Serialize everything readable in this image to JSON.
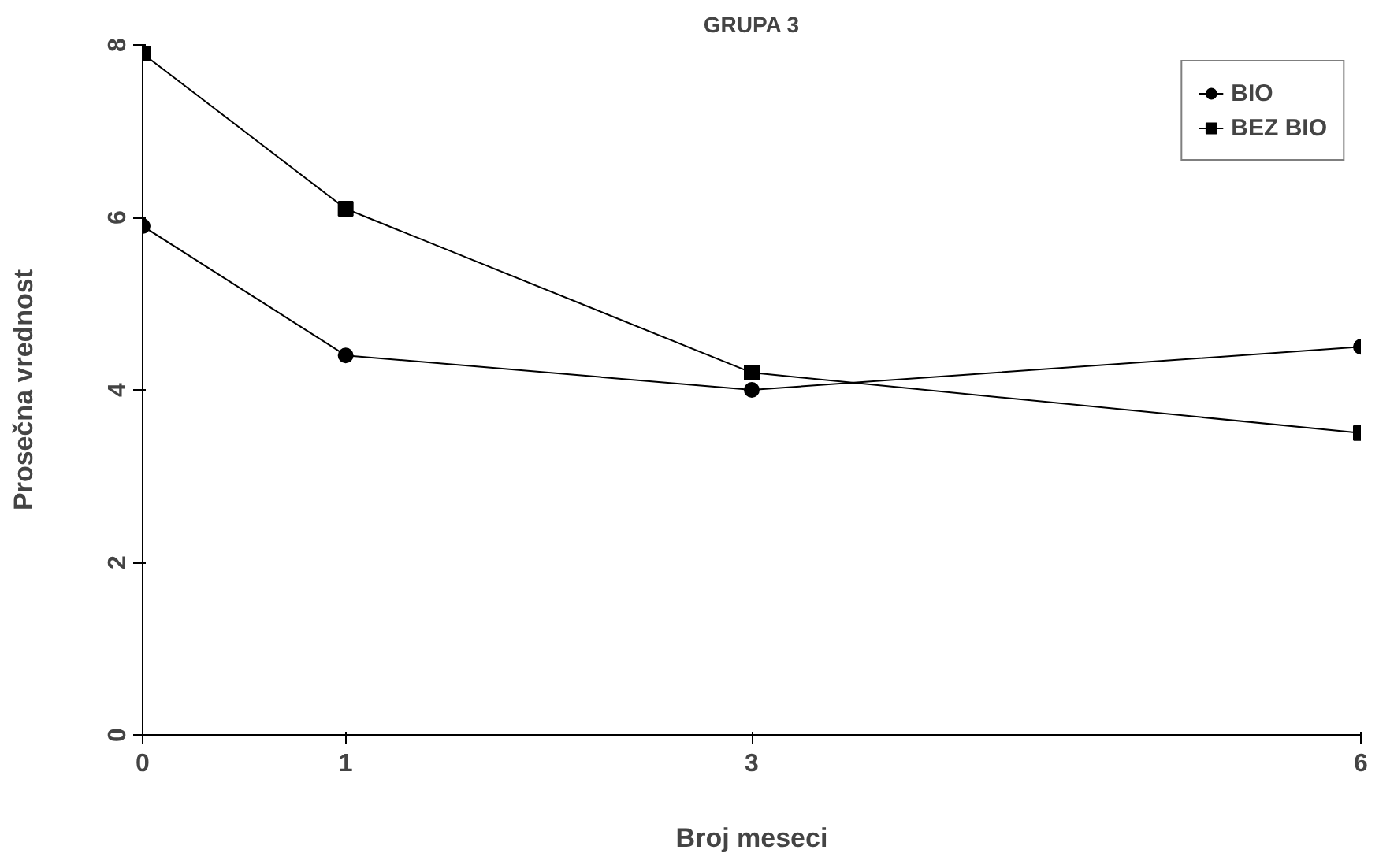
{
  "chart_data": {
    "type": "line",
    "title": "GRUPA 3",
    "xlabel": "Broj meseci",
    "ylabel": "Prosečna vrednost",
    "x": [
      0,
      1,
      3,
      6
    ],
    "xlim": [
      0,
      6
    ],
    "xticks": [
      0,
      1,
      3,
      6
    ],
    "ylim": [
      0,
      8
    ],
    "yticks": [
      0,
      2,
      4,
      6,
      8
    ],
    "series": [
      {
        "name": "BIO",
        "color": "#000000",
        "values": [
          5.9,
          4.4,
          4.0,
          4.5
        ],
        "marker": "circle"
      },
      {
        "name": "BEZ BIO",
        "color": "#000000",
        "values": [
          7.9,
          6.1,
          4.2,
          3.5
        ],
        "marker": "square"
      }
    ],
    "grid": false,
    "legend": "top right",
    "line_style": "solid"
  }
}
